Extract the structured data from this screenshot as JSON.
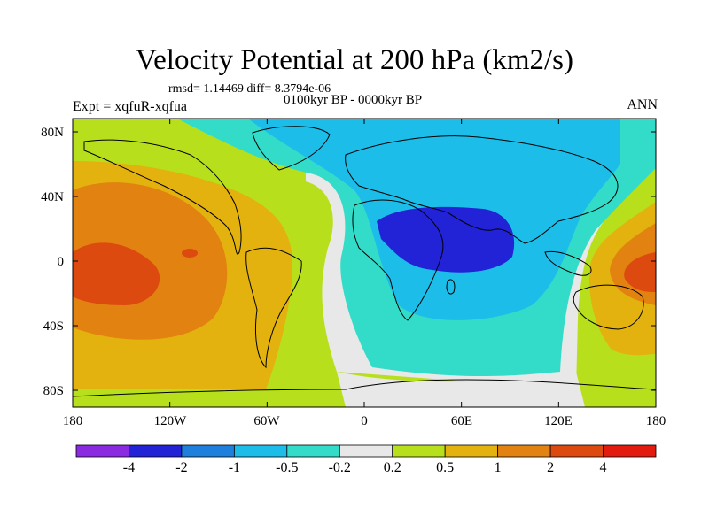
{
  "title": "Velocity Potential at 200 hPa (km2/s)",
  "stats": "rmsd= 1.14469  diff= 8.3794e-06",
  "period": "0100kyr BP - 0000kyr BP",
  "experiment": "Expt = xqfuR-xqfua",
  "season": "ANN",
  "axes": {
    "lat_labels": [
      "80N",
      "40N",
      "0",
      "40S",
      "80S"
    ],
    "lon_labels": [
      "180",
      "120W",
      "60W",
      "0",
      "60E",
      "120E",
      "180"
    ]
  },
  "colorbar": {
    "labels": [
      "-4",
      "-2",
      "-1",
      "-0.5",
      "-0.2",
      "0.2",
      "0.5",
      "1",
      "2",
      "4"
    ],
    "colors": [
      "#8a2be2",
      "#2222d6",
      "#1e7fdc",
      "#1cbde8",
      "#33dcc8",
      "#e8e8e8",
      "#b8df1c",
      "#e3b20e",
      "#e28210",
      "#dc4a10",
      "#e31a0e"
    ]
  },
  "field_colors": {
    "neg_light": "#33dcc8",
    "neg_mid": "#1cbde8",
    "neg_strong": "#2222d6",
    "neutral": "#e8e8e8",
    "pos_light": "#b8df1c",
    "pos_mid": "#e3b20e",
    "pos_strong": "#e28210",
    "pos_max": "#dc4a10"
  }
}
